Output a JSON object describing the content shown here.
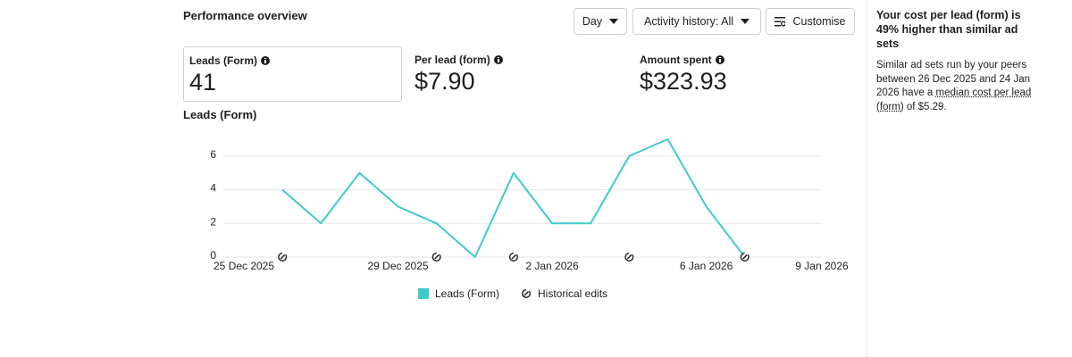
{
  "header": {
    "title": "Performance overview",
    "buttons": [
      "Day",
      "Activity history: All",
      "Customise"
    ]
  },
  "metrics": [
    {
      "label": "Leads (Form)",
      "value": 41
    },
    {
      "label": "Per lead (form)",
      "value": "$7.90"
    },
    {
      "label": "Amount spent",
      "value": "$323.93"
    }
  ],
  "chart_data": {
    "type": "line",
    "title": "Leads (Form)",
    "x": [
      "2025-12-26",
      "2025-12-27",
      "2025-12-28",
      "2025-12-29",
      "2025-12-30",
      "2025-12-31",
      "2026-01-01",
      "2026-01-02",
      "2026-01-03",
      "2026-01-04",
      "2026-01-05",
      "2026-01-06",
      "2026-01-07"
    ],
    "series": [
      {
        "name": "Leads (Form)",
        "color": "#3fcaca",
        "values": [
          4,
          2,
          5,
          3,
          2,
          0,
          5,
          2,
          2,
          6,
          7,
          3,
          0
        ]
      }
    ],
    "xlim": [
      "2025-12-25",
      "2026-01-09"
    ],
    "xticks": [
      {
        "value": "2025-12-25",
        "label": "25 Dec 2025"
      },
      {
        "value": "2025-12-29",
        "label": "29 Dec 2025"
      },
      {
        "value": "2026-01-02",
        "label": "2 Jan 2026"
      },
      {
        "value": "2026-01-06",
        "label": "6 Jan 2026"
      },
      {
        "value": "2026-01-09",
        "label": "9 Jan 2026"
      }
    ],
    "ylim": [
      0,
      7
    ],
    "yticks": [
      0,
      2,
      4,
      6
    ],
    "grid": true,
    "edits": {
      "name": "Historical edits",
      "x": [
        "2025-12-26",
        "2025-12-30",
        "2026-01-01",
        "2026-01-04",
        "2026-01-07"
      ]
    }
  },
  "side_panel": {
    "title": "Your cost per lead (form) is 49% higher than similar ad sets",
    "text": "Similar ad sets run by your peers between 26 Dec 2025 and 24 Jan 2026 have a ",
    "link": "median cost per lead (form)",
    "end": " of $5.29."
  }
}
